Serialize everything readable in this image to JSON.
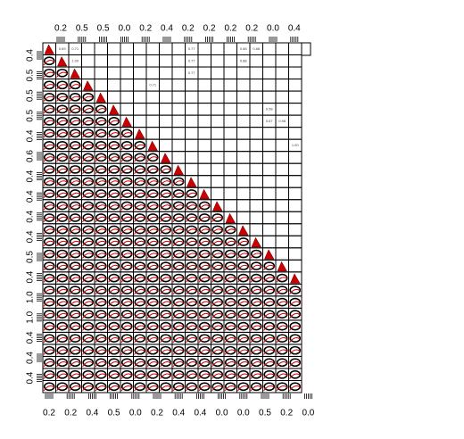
{
  "chart_data": {
    "type": "pairs",
    "n_vars": 20,
    "extra_rows": 9,
    "top_axis_labels": [
      "0.2",
      "0.5",
      "0.5",
      "0.0",
      "0.2",
      "0.4",
      "0.2",
      "0.2",
      "0.2",
      "0.2",
      "0.0",
      "0.4"
    ],
    "left_axis_labels": [
      "0.4",
      "0.5",
      "0.5",
      "0.5",
      "0.4",
      "0.6",
      "0.4",
      "0.4",
      "0.4",
      "0.4",
      "0.5",
      "0.4",
      "1.0",
      "1.0",
      "0.4",
      "0.4",
      "0.4"
    ],
    "bottom_axis_labels": [
      "0.2",
      "0.2",
      "0.4",
      "0.5",
      "0.0",
      "0.2",
      "0.4",
      "0.4",
      "0.0",
      "0.0",
      "0.5",
      "0.2",
      "0.0"
    ],
    "correlations": [
      {
        "row": 0,
        "col": 1,
        "value": "0.69"
      },
      {
        "row": 0,
        "col": 2,
        "value": "0.71"
      },
      {
        "row": 0,
        "col": 11,
        "value": "0.77"
      },
      {
        "row": 0,
        "col": 15,
        "value": "0.88"
      },
      {
        "row": 0,
        "col": 16,
        "value": "0.88"
      },
      {
        "row": 1,
        "col": 2,
        "value": "1.00"
      },
      {
        "row": 1,
        "col": 11,
        "value": "0.77"
      },
      {
        "row": 1,
        "col": 15,
        "value": "0.88"
      },
      {
        "row": 2,
        "col": 11,
        "value": "0.77"
      },
      {
        "row": 3,
        "col": 8,
        "value": "0.71"
      },
      {
        "row": 5,
        "col": 17,
        "value": "0.58"
      },
      {
        "row": 6,
        "col": 17,
        "value": "0.67"
      },
      {
        "row": 6,
        "col": 18,
        "value": "0.98"
      },
      {
        "row": 8,
        "col": 19,
        "value": "1.00"
      }
    ]
  }
}
